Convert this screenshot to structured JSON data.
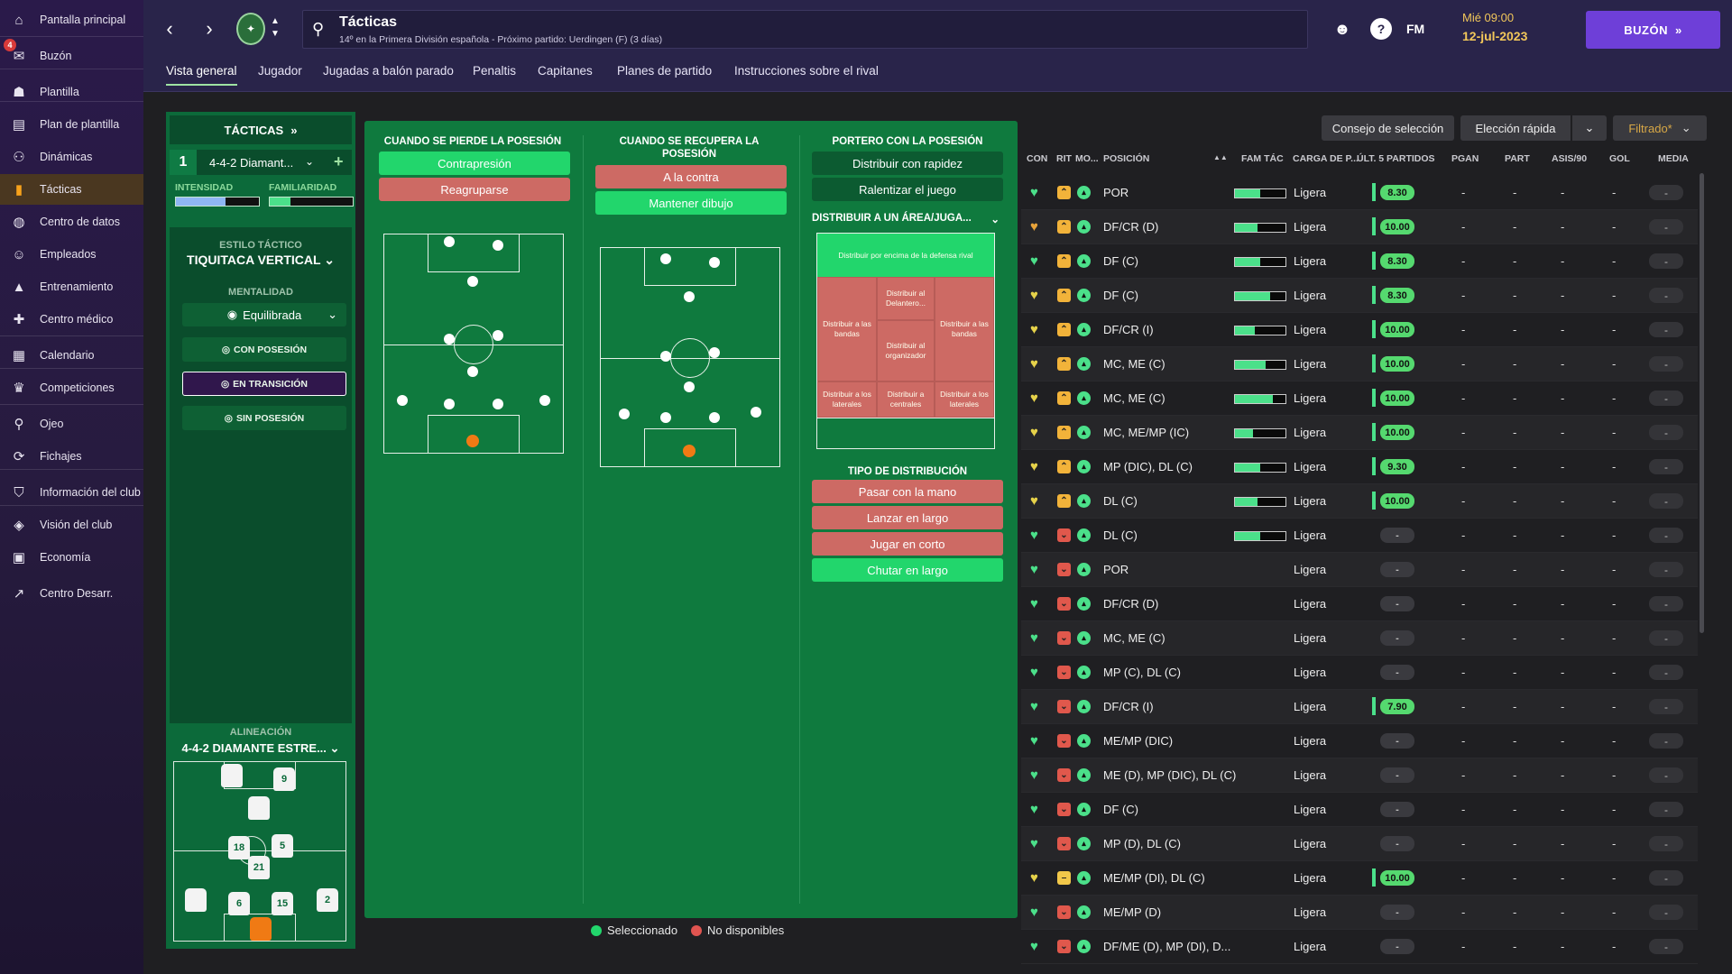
{
  "sidebar": {
    "items": [
      {
        "label": "Pantalla principal",
        "icon": "home-icon"
      },
      {
        "label": "Buzón",
        "icon": "inbox-icon",
        "badge": "4"
      },
      {
        "label": "Plantilla",
        "icon": "squad-icon"
      },
      {
        "label": "Plan de plantilla",
        "icon": "clipboard-icon"
      },
      {
        "label": "Dinámicas",
        "icon": "dynamics-icon"
      },
      {
        "label": "Tácticas",
        "icon": "tactics-icon",
        "active": true
      },
      {
        "label": "Centro de datos",
        "icon": "data-icon"
      },
      {
        "label": "Empleados",
        "icon": "staff-icon"
      },
      {
        "label": "Entrenamiento",
        "icon": "training-icon"
      },
      {
        "label": "Centro médico",
        "icon": "medical-icon"
      },
      {
        "label": "Calendario",
        "icon": "calendar-icon"
      },
      {
        "label": "Competiciones",
        "icon": "trophy-icon"
      },
      {
        "label": "Ojeo",
        "icon": "scouting-icon"
      },
      {
        "label": "Fichajes",
        "icon": "transfers-icon"
      },
      {
        "label": "Información del club",
        "icon": "club-info-icon"
      },
      {
        "label": "Visión del club",
        "icon": "club-vision-icon"
      },
      {
        "label": "Economía",
        "icon": "finances-icon"
      },
      {
        "label": "Centro Desarr.",
        "icon": "development-icon"
      }
    ]
  },
  "topbar": {
    "title": "Tácticas",
    "subtitle": "14º en la Primera División española - Próximo partido: Uerdingen (F) (3 días)",
    "fm": "FM",
    "help": "?",
    "date_line1": "Mié 09:00",
    "date_line2": "12-jul-2023",
    "inbox_button": "BUZÓN"
  },
  "tabs": [
    "Vista general",
    "Jugador",
    "Jugadas a balón parado",
    "Penaltis",
    "Capitanes",
    "Planes de partido",
    "Instrucciones sobre el rival"
  ],
  "tactics_panel": {
    "header": "TÁCTICAS",
    "slot": "1",
    "formation": "4-4-2 Diamant...",
    "plus": "+",
    "intensity_label": "INTENSIDAD",
    "familiarity_label": "FAMILIARIDAD",
    "intensity_value": 0.6,
    "familiarity_value": 0.25,
    "style_label": "ESTILO TÁCTICO",
    "style_value": "TIQUITACA VERTICAL",
    "mentality_label": "MENTALIDAD",
    "mentality_value": "Equilibrada",
    "btn_possession": "CON POSESIÓN",
    "btn_transition": "EN TRANSICIÓN",
    "btn_no_possession": "SIN POSESIÓN",
    "lineup_label": "ALINEACIÓN",
    "lineup_formation": "4-4-2 DIAMANTE ESTRE...",
    "shirts": [
      "9",
      "18",
      "5",
      "21",
      "6",
      "15",
      "2"
    ]
  },
  "transition": {
    "lose_title": "CUANDO SE PIERDE LA POSESIÓN",
    "lose_options": [
      {
        "label": "Contrapresión",
        "state": "selected"
      },
      {
        "label": "Reagruparse",
        "state": "unavailable"
      }
    ],
    "win_title": "CUANDO SE RECUPERA LA POSESIÓN",
    "win_options": [
      {
        "label": "A la contra",
        "state": "unavailable"
      },
      {
        "label": "Mantener dibujo",
        "state": "selected"
      }
    ],
    "gk_title": "PORTERO CON LA POSESIÓN",
    "gk_options": [
      {
        "label": "Distribuir con rapidez",
        "state": "normal"
      },
      {
        "label": "Ralentizar el juego",
        "state": "normal"
      }
    ],
    "dist_area_title": "DISTRIBUIR A UN ÁREA/JUGA...",
    "dist_cells": {
      "top": "Distribuir por encima de la defensa rival",
      "fwd": "Distribuir al Delantero...",
      "left_wings": "Distribuir a las bandas",
      "right_wings": "Distribuir a las bandas",
      "playmaker": "Distribuir al organizador",
      "left_fb": "Distribuir a los laterales",
      "cb": "Distribuir a centrales",
      "right_fb": "Distribuir a los laterales"
    },
    "dist_type_title": "TIPO DE DISTRIBUCIÓN",
    "dist_type_options": [
      {
        "label": "Pasar con la mano",
        "state": "unavailable"
      },
      {
        "label": "Lanzar en largo",
        "state": "unavailable"
      },
      {
        "label": "Jugar en corto",
        "state": "unavailable"
      },
      {
        "label": "Chutar en largo",
        "state": "selected"
      }
    ],
    "legend_selected": "Seleccionado",
    "legend_unavailable": "No disponibles"
  },
  "squad_table": {
    "buttons": {
      "selection_advice": "Consejo de selección",
      "quick_pick": "Elección rápida",
      "filter": "Filtrado*"
    },
    "headers": {
      "con": "CON",
      "rit": "RIT",
      "mo": "MO...",
      "pos": "POSICIÓN",
      "fam": "FAM TÁC",
      "load": "CARGA DE P...",
      "last5": "ÚLT. 5 PARTIDOS",
      "pgan": "PGAN",
      "part": "PART",
      "asis": "ASIS/90",
      "gol": "GOL",
      "media": "MEDIA"
    },
    "rows": [
      {
        "pos": "POR",
        "fam": 0.5,
        "load": "Ligera",
        "last5": "8.30",
        "rit": "up",
        "heart": "green"
      },
      {
        "pos": "DF/CR (D)",
        "fam": 0.45,
        "load": "Ligera",
        "last5": "10.00",
        "rit": "up",
        "heart": "orange"
      },
      {
        "pos": "DF (C)",
        "fam": 0.5,
        "load": "Ligera",
        "last5": "8.30",
        "rit": "up",
        "heart": "green"
      },
      {
        "pos": "DF (C)",
        "fam": 0.7,
        "load": "Ligera",
        "last5": "8.30",
        "rit": "up",
        "heart": "yellow"
      },
      {
        "pos": "DF/CR (I)",
        "fam": 0.4,
        "load": "Ligera",
        "last5": "10.00",
        "rit": "up",
        "heart": "yellow"
      },
      {
        "pos": "MC, ME (C)",
        "fam": 0.6,
        "load": "Ligera",
        "last5": "10.00",
        "rit": "up",
        "heart": "yellow"
      },
      {
        "pos": "MC, ME (C)",
        "fam": 0.75,
        "load": "Ligera",
        "last5": "10.00",
        "rit": "up",
        "heart": "yellow"
      },
      {
        "pos": "MC, ME/MP (IC)",
        "fam": 0.35,
        "load": "Ligera",
        "last5": "10.00",
        "rit": "up",
        "heart": "yellow"
      },
      {
        "pos": "MP (DIC), DL (C)",
        "fam": 0.5,
        "load": "Ligera",
        "last5": "9.30",
        "rit": "up",
        "heart": "yellow"
      },
      {
        "pos": "DL (C)",
        "fam": 0.45,
        "load": "Ligera",
        "last5": "10.00",
        "rit": "up",
        "heart": "yellow"
      },
      {
        "pos": "DL (C)",
        "fam": 0.5,
        "load": "Ligera",
        "last5": "-",
        "rit": "down",
        "heart": "green"
      },
      {
        "pos": "POR",
        "fam": 0,
        "load": "Ligera",
        "last5": "-",
        "rit": "down",
        "heart": "green"
      },
      {
        "pos": "DF/CR (D)",
        "fam": 0,
        "load": "Ligera",
        "last5": "-",
        "rit": "down",
        "heart": "green"
      },
      {
        "pos": "MC, ME (C)",
        "fam": 0,
        "load": "Ligera",
        "last5": "-",
        "rit": "down",
        "heart": "green"
      },
      {
        "pos": "MP (C), DL (C)",
        "fam": 0,
        "load": "Ligera",
        "last5": "-",
        "rit": "down",
        "heart": "green"
      },
      {
        "pos": "DF/CR (I)",
        "fam": 0,
        "load": "Ligera",
        "last5": "7.90",
        "rit": "down",
        "heart": "green"
      },
      {
        "pos": "ME/MP (DIC)",
        "fam": 0,
        "load": "Ligera",
        "last5": "-",
        "rit": "down",
        "heart": "green"
      },
      {
        "pos": "ME (D), MP (DIC), DL (C)",
        "fam": 0,
        "load": "Ligera",
        "last5": "-",
        "rit": "down",
        "heart": "green"
      },
      {
        "pos": "DF (C)",
        "fam": 0,
        "load": "Ligera",
        "last5": "-",
        "rit": "down",
        "heart": "green"
      },
      {
        "pos": "MP (D), DL (C)",
        "fam": 0,
        "load": "Ligera",
        "last5": "-",
        "rit": "down",
        "heart": "green"
      },
      {
        "pos": "ME/MP (DI), DL (C)",
        "fam": 0,
        "load": "Ligera",
        "last5": "10.00",
        "rit": "flat",
        "heart": "yellow"
      },
      {
        "pos": "ME/MP (D)",
        "fam": 0,
        "load": "Ligera",
        "last5": "-",
        "rit": "down",
        "heart": "green"
      },
      {
        "pos": "DF/ME (D), MP (DI), D...",
        "fam": 0,
        "load": "Ligera",
        "last5": "-",
        "rit": "down",
        "heart": "green"
      }
    ],
    "dash": "-"
  },
  "colors": {
    "selected": "#22d66c",
    "unavailable": "#cd6a64",
    "accent": "#6e3fd8",
    "date": "#f2c75a"
  }
}
